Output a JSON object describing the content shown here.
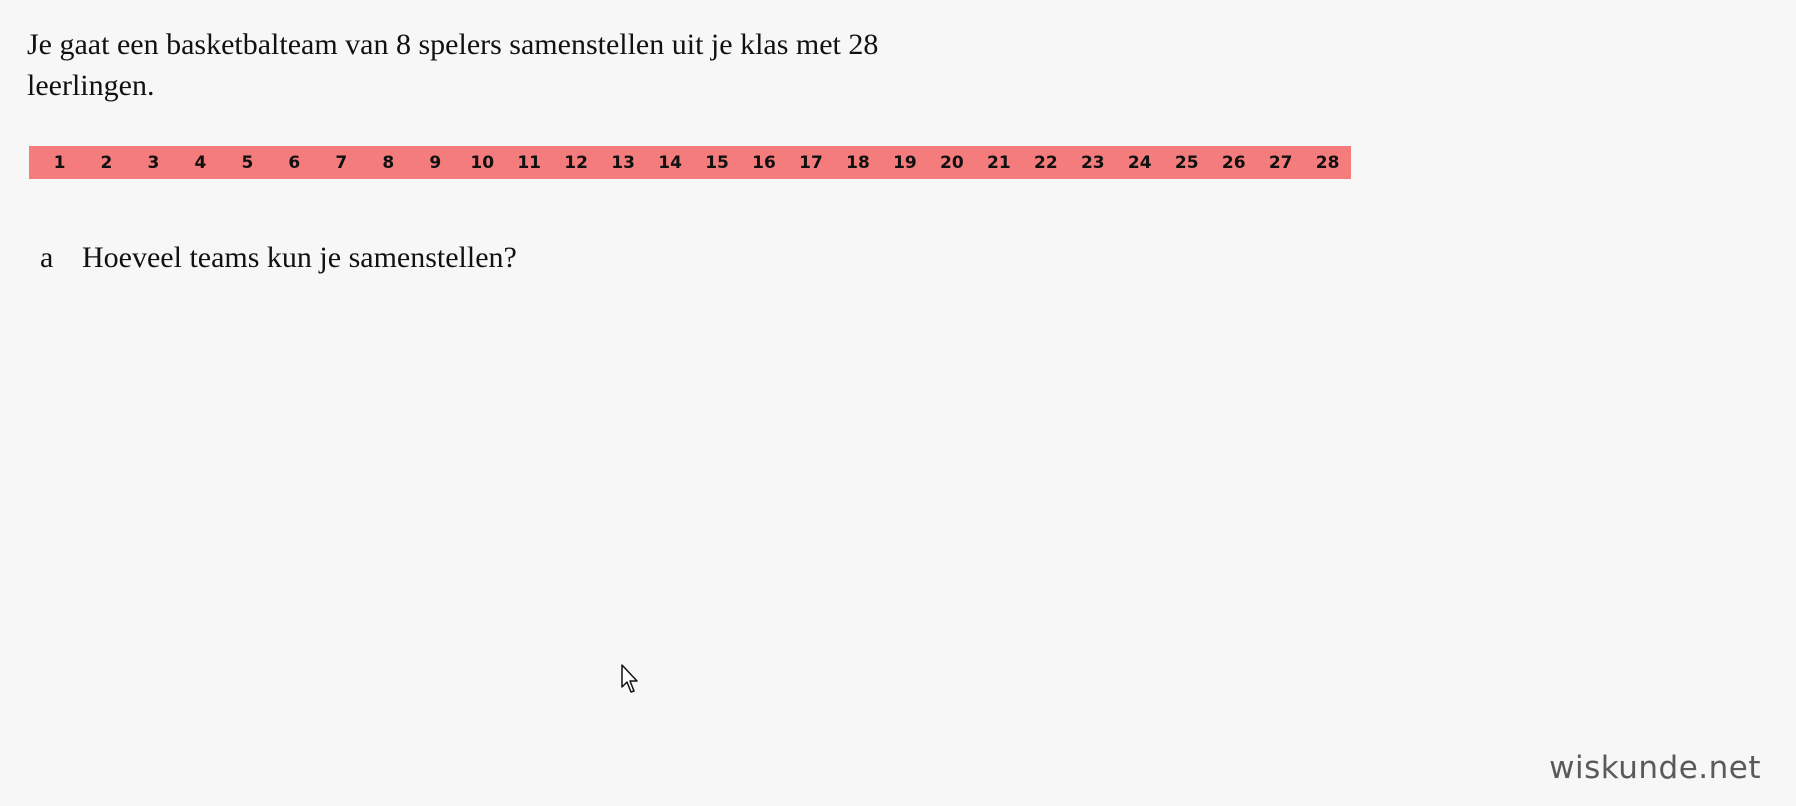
{
  "intro": {
    "line1": "Je gaat een basketbalteam van 8 spelers samenstellen uit je klas met 28",
    "line2": "leerlingen."
  },
  "numbers": [
    "1",
    "2",
    "3",
    "4",
    "5",
    "6",
    "7",
    "8",
    "9",
    "10",
    "11",
    "12",
    "13",
    "14",
    "15",
    "16",
    "17",
    "18",
    "19",
    "20",
    "21",
    "22",
    "23",
    "24",
    "25",
    "26",
    "27",
    "28"
  ],
  "strip_color": "#f47c7c",
  "question": {
    "letter": "a",
    "text": "Hoeveel teams kun je samenstellen?"
  },
  "watermark": "wiskunde.net",
  "cursor_icon": "mouse-pointer-icon"
}
